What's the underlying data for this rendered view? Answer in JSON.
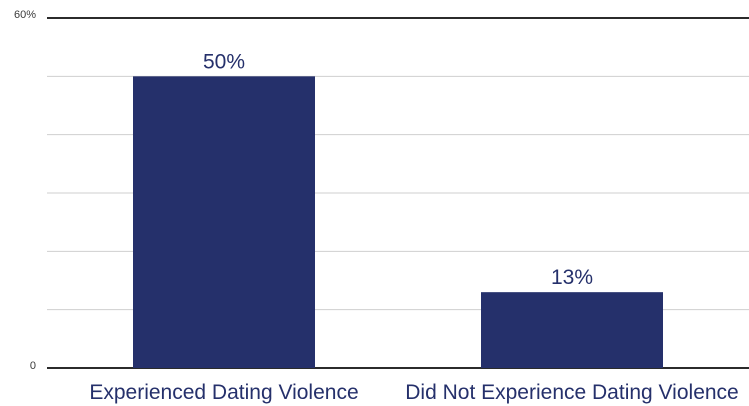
{
  "chart_data": {
    "type": "bar",
    "categories": [
      "Experienced Dating Violence",
      "Did Not Experience Dating Violence"
    ],
    "values": [
      50,
      13
    ],
    "data_labels": [
      "50%",
      "13%"
    ],
    "y_tick_labels": {
      "min": "0",
      "max": "60%"
    },
    "ylim": [
      0,
      60
    ],
    "gridlines": [
      0,
      10,
      20,
      30,
      40,
      50,
      60
    ],
    "grid": true,
    "legend": "none",
    "colors": {
      "bar": "#25306b",
      "grid": "#cfcfcf",
      "axis": "#2b2b2b"
    }
  }
}
